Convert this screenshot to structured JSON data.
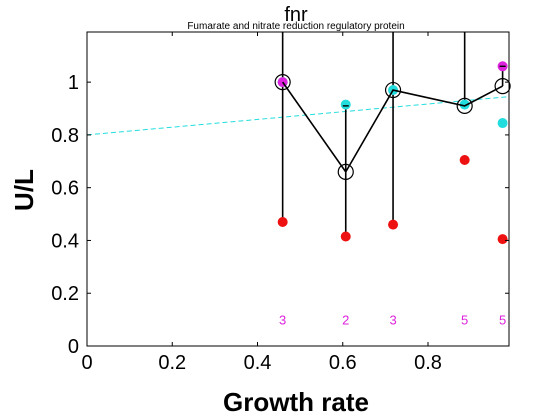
{
  "chart_data": {
    "type": "scatter",
    "title": "fnr",
    "subtitle": "Fumarate and nitrate reduction regulatory protein",
    "xlabel": "Growth rate",
    "ylabel": "U/L",
    "xlim": [
      0,
      0.99
    ],
    "ylim": [
      0,
      1.19
    ],
    "xticks": [
      0,
      0.2,
      0.4,
      0.6,
      0.8
    ],
    "xtick_labels": [
      "0",
      "0.2",
      "0.4",
      "0.6",
      "0.8"
    ],
    "yticks": [
      0,
      0.2,
      0.4,
      0.6,
      0.8,
      1
    ],
    "ytick_labels": [
      "0",
      "0.2",
      "0.4",
      "0.6",
      "0.8",
      "1"
    ],
    "grid": false,
    "colors": {
      "mean": "#000000",
      "red_points": "#ee1111",
      "cyan_points": "#22dddd",
      "magenta_points": "#dd22dd",
      "trend_line": "#22dddd",
      "counts": "#dd22dd"
    },
    "series": [
      {
        "type": "line-markers",
        "x": [
          0.459,
          0.607,
          0.718,
          0.886,
          0.975
        ],
        "y": [
          1.0,
          0.66,
          0.97,
          0.91,
          0.985
        ],
        "error_bar_upper": [
          1.19,
          0.91,
          1.19,
          1.19,
          1.06
        ],
        "error_bar_lower": [
          0.47,
          0.41,
          0.46,
          0.91,
          0.985
        ]
      },
      {
        "type": "scatter",
        "x": [
          0.459,
          0.607,
          0.718,
          0.886,
          0.975
        ],
        "y": [
          0.47,
          0.415,
          0.46,
          0.705,
          0.405
        ],
        "color": "red_points"
      },
      {
        "type": "scatter",
        "x": [
          0.459,
          0.607,
          0.718,
          0.886,
          0.975
        ],
        "y": [
          1.0,
          0.915,
          0.97,
          0.915,
          0.845
        ],
        "color": "cyan_points"
      },
      {
        "type": "scatter",
        "x": [
          0.459,
          0.975
        ],
        "y": [
          1.0,
          1.06
        ],
        "color": "magenta_points"
      },
      {
        "type": "trend-line",
        "x": [
          0,
          0.99
        ],
        "y": [
          0.8,
          0.945
        ],
        "color": "trend_line"
      }
    ],
    "annotations": [
      {
        "x": 0.459,
        "y": 0.1,
        "text": "3"
      },
      {
        "x": 0.607,
        "y": 0.1,
        "text": "2"
      },
      {
        "x": 0.718,
        "y": 0.1,
        "text": "3"
      },
      {
        "x": 0.886,
        "y": 0.1,
        "text": "5"
      },
      {
        "x": 0.975,
        "y": 0.1,
        "text": "5"
      }
    ]
  }
}
